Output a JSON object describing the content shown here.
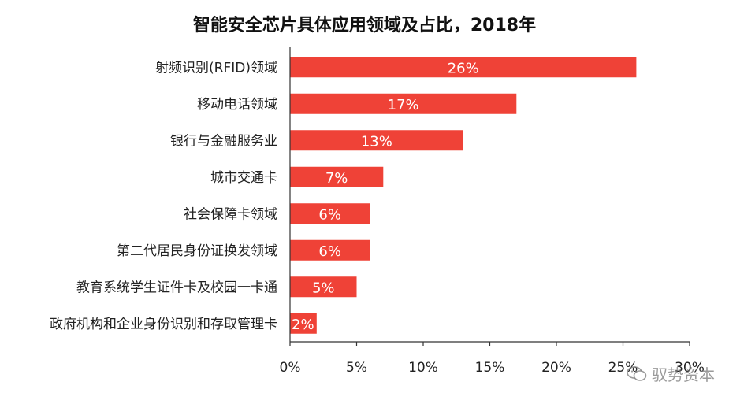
{
  "colors": {
    "bar": "#ef4237",
    "axis": "#333333",
    "text": "#222222",
    "background": "#ffffff"
  },
  "chart_data": {
    "type": "bar",
    "orientation": "horizontal",
    "title": "智能安全芯片具体应用领域及占比，2018年",
    "categories": [
      "射频识别(RFID)领域",
      "移动电话领域",
      "银行与金融服务业",
      "城市交通卡",
      "社会保障卡领域",
      "第二代居民身份证换发领域",
      "教育系统学生证件卡及校园一卡通",
      "政府机构和企业身份识别和存取管理卡"
    ],
    "values": [
      26,
      17,
      13,
      7,
      6,
      6,
      5,
      2
    ],
    "data_labels": [
      "26%",
      "17%",
      "13%",
      "7%",
      "6%",
      "6%",
      "5%",
      "2%"
    ],
    "xlim": [
      0,
      30
    ],
    "x_ticks": [
      0,
      5,
      10,
      15,
      20,
      25,
      30
    ],
    "x_tick_labels": [
      "0%",
      "5%",
      "10%",
      "15%",
      "20%",
      "25%",
      "30%"
    ],
    "grid": false,
    "legend": "none"
  },
  "watermark": {
    "icon": "wechat-icon",
    "text": "驭势资本"
  }
}
